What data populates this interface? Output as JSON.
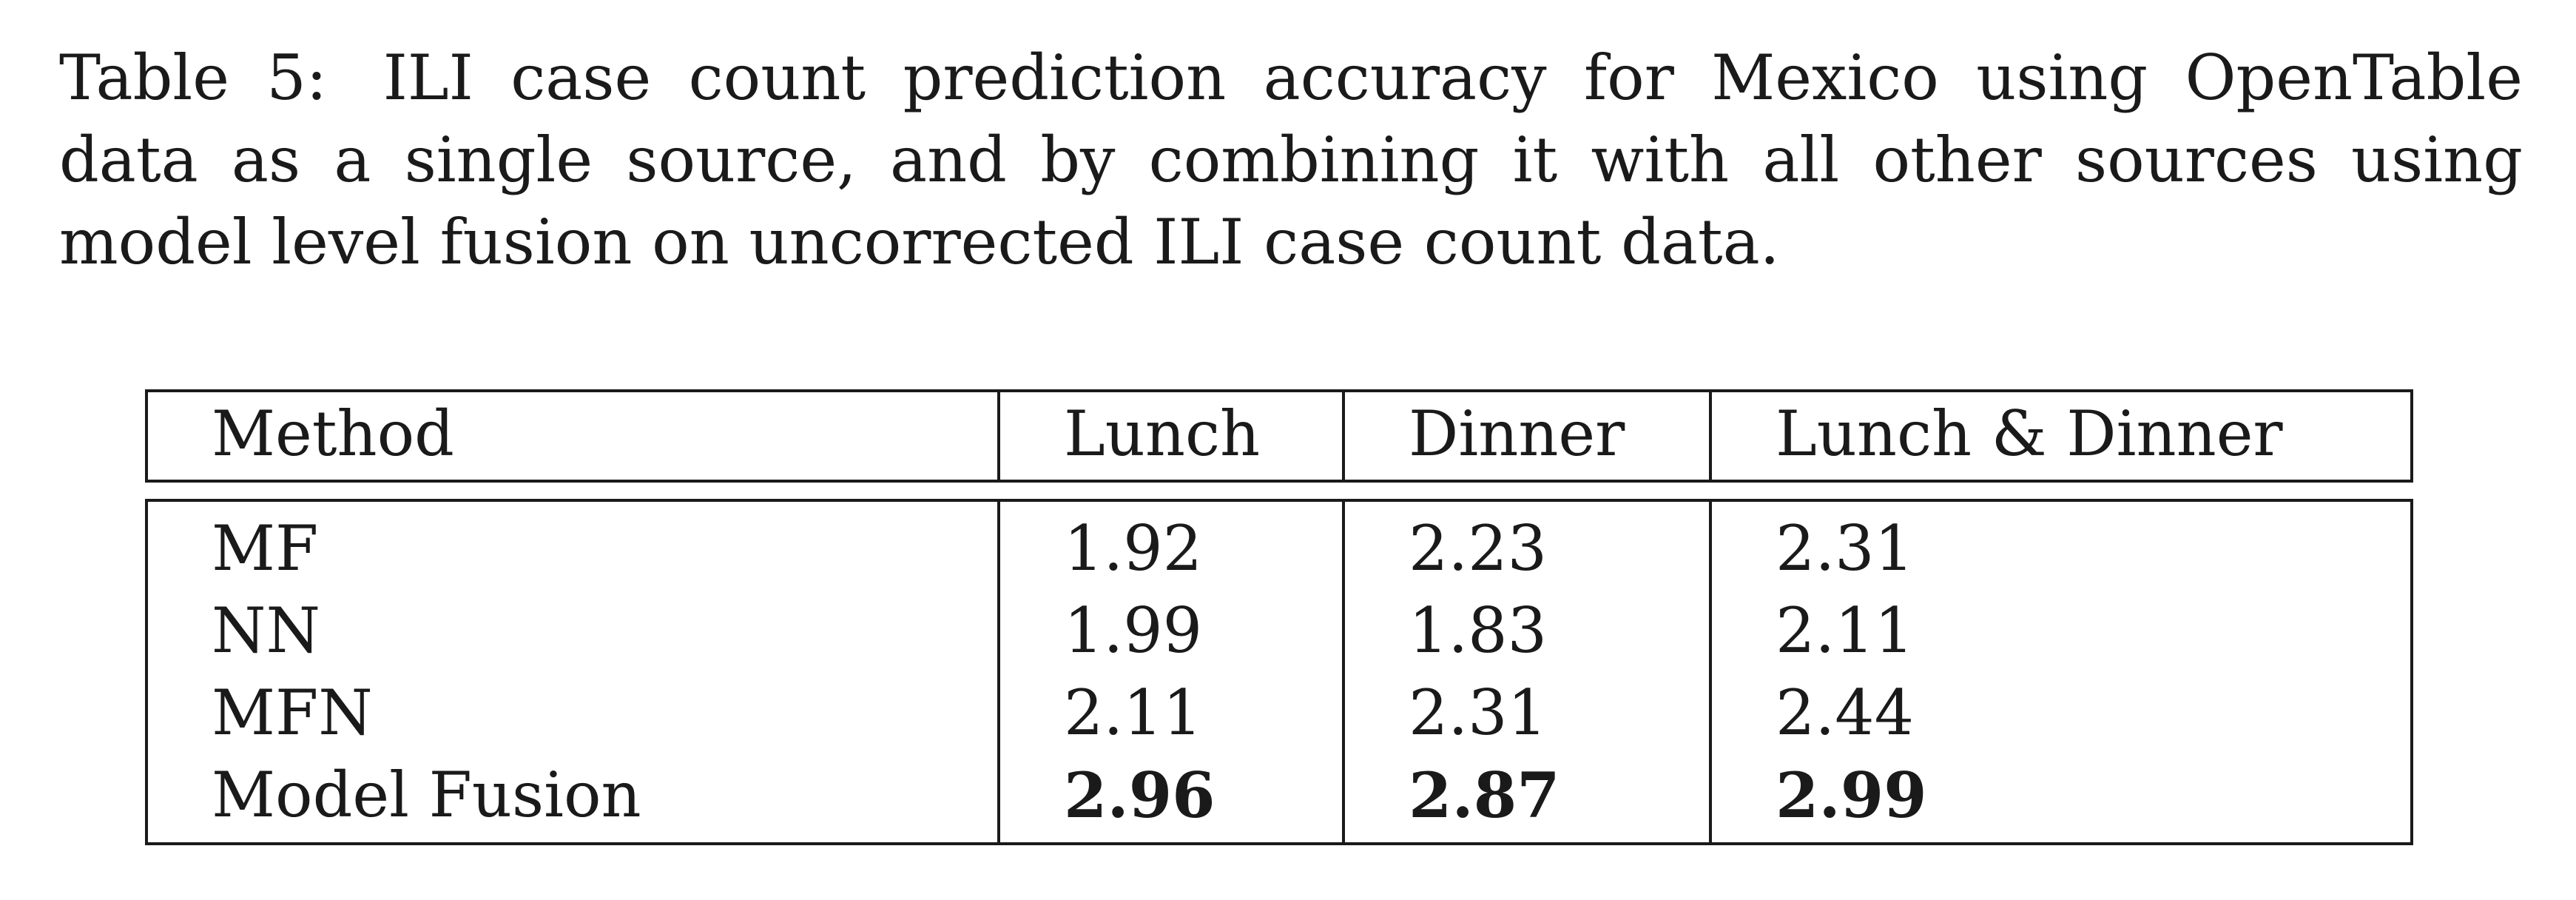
{
  "caption": {
    "label": "Table 5:",
    "text": "ILI case count prediction accuracy for Mexico using OpenTable data as a single source, and by combining it with all other sources using model level fusion on uncorrected ILI case count data."
  },
  "table": {
    "headers": [
      "Method",
      "Lunch",
      "Dinner",
      "Lunch & Dinner"
    ],
    "rows": [
      {
        "method": "MF",
        "lunch": "1.92",
        "dinner": "2.23",
        "both": "2.31"
      },
      {
        "method": "NN",
        "lunch": "1.99",
        "dinner": "1.83",
        "both": "2.11"
      },
      {
        "method": "MFN",
        "lunch": "2.11",
        "dinner": "2.31",
        "both": "2.44"
      },
      {
        "method": "Model Fusion",
        "lunch": "2.96",
        "dinner": "2.87",
        "both": "2.99"
      }
    ],
    "bold_row_index": 3
  }
}
